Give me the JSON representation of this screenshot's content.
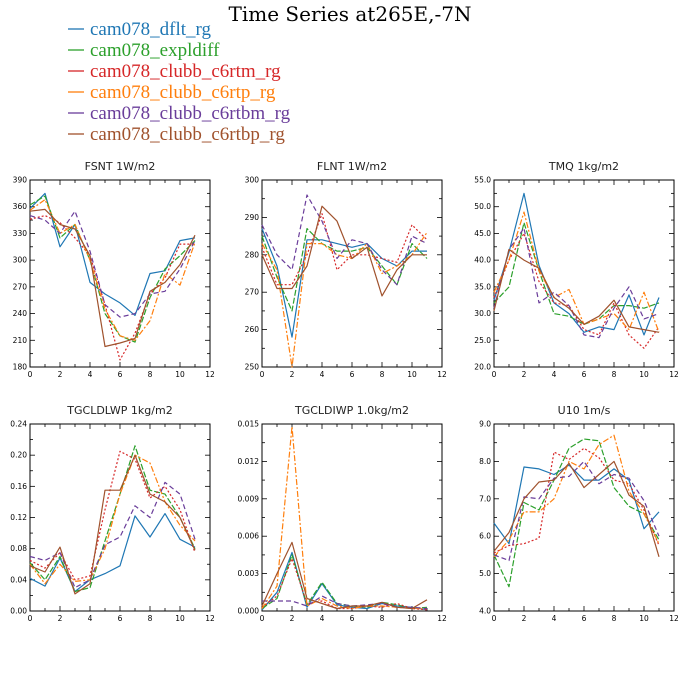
{
  "figure": {
    "title": "Time Series at265E,-7N",
    "legend": [
      {
        "name": "cam078_dflt_rg",
        "color": "#1f77b4"
      },
      {
        "name": "cam078_expldiff",
        "color": "#2ca02c"
      },
      {
        "name": "cam078_clubb_c6rtm_rg",
        "color": "#d62728"
      },
      {
        "name": "cam078_clubb_c6rtp_rg",
        "color": "#ff7f0e"
      },
      {
        "name": "cam078_clubb_c6rtbm_rg",
        "color": "#6a3d9a"
      },
      {
        "name": "cam078_clubb_c6rtbp_rg",
        "color": "#a0522d"
      }
    ]
  },
  "chart_data": [
    {
      "type": "line",
      "title": "FSNT   1W/m2",
      "x": [
        0,
        1,
        2,
        3,
        4,
        5,
        6,
        7,
        8,
        9,
        10,
        11
      ],
      "xlim": [
        0,
        12
      ],
      "xticks": [
        "0",
        "2",
        "4",
        "6",
        "8",
        "10",
        "12"
      ],
      "ylim": [
        180,
        390
      ],
      "yticks": [
        "180",
        "210",
        "240",
        "270",
        "300",
        "330",
        "360",
        "390"
      ],
      "series": [
        {
          "name": "cam078_dflt_rg",
          "color": "#1f77b4",
          "dash": "",
          "values": [
            358,
            375,
            315,
            340,
            275,
            262,
            252,
            238,
            285,
            288,
            322,
            325
          ]
        },
        {
          "name": "cam078_expldiff",
          "color": "#2ca02c",
          "dash": "6,2",
          "values": [
            362,
            372,
            325,
            340,
            300,
            240,
            215,
            208,
            258,
            290,
            305,
            322
          ]
        },
        {
          "name": "cam078_clubb_c6rtm_rg",
          "color": "#d62728",
          "dash": "2,2",
          "values": [
            346,
            350,
            342,
            325,
            305,
            250,
            188,
            218,
            262,
            280,
            318,
            318
          ]
        },
        {
          "name": "cam078_clubb_c6rtp_rg",
          "color": "#ff7f0e",
          "dash": "6,2,2,2",
          "values": [
            356,
            368,
            330,
            340,
            300,
            245,
            215,
            210,
            232,
            285,
            272,
            320
          ]
        },
        {
          "name": "cam078_clubb_c6rtbm_rg",
          "color": "#6a3d9a",
          "dash": "5,3",
          "values": [
            350,
            345,
            330,
            355,
            310,
            250,
            236,
            240,
            262,
            265,
            290,
            322
          ]
        },
        {
          "name": "cam078_clubb_c6rtbp_rg",
          "color": "#a0522d",
          "dash": "",
          "values": [
            355,
            357,
            340,
            335,
            305,
            203,
            207,
            212,
            265,
            275,
            295,
            328
          ]
        }
      ]
    },
    {
      "type": "line",
      "title": "FLNT   1W/m2",
      "x": [
        0,
        1,
        2,
        3,
        4,
        5,
        6,
        7,
        8,
        9,
        10,
        11
      ],
      "xlim": [
        0,
        12
      ],
      "xticks": [
        "0",
        "2",
        "4",
        "6",
        "8",
        "10",
        "12"
      ],
      "ylim": [
        250,
        300
      ],
      "yticks": [
        "250",
        "260",
        "270",
        "280",
        "290",
        "300"
      ],
      "series": [
        {
          "name": "cam078_dflt_rg",
          "color": "#1f77b4",
          "dash": "",
          "values": [
            287,
            277,
            258,
            284,
            284,
            283,
            282,
            283,
            279,
            277,
            281,
            281
          ]
        },
        {
          "name": "cam078_expldiff",
          "color": "#2ca02c",
          "dash": "6,2",
          "values": [
            285,
            274,
            265,
            287,
            283,
            281,
            281,
            282,
            277,
            272,
            283,
            279
          ]
        },
        {
          "name": "cam078_clubb_c6rtm_rg",
          "color": "#d62728",
          "dash": "2,2",
          "values": [
            282,
            272,
            272,
            280,
            291,
            276,
            280,
            280,
            279,
            278,
            288,
            284
          ]
        },
        {
          "name": "cam078_clubb_c6rtp_rg",
          "color": "#ff7f0e",
          "dash": "6,2,2,2",
          "values": [
            283,
            276,
            250,
            283,
            283,
            280,
            279,
            283,
            275,
            277,
            280,
            286
          ]
        },
        {
          "name": "cam078_clubb_c6rtbm_rg",
          "color": "#6a3d9a",
          "dash": "5,3",
          "values": [
            288,
            280,
            276,
            296,
            289,
            279,
            284,
            283,
            276,
            272,
            285,
            283
          ]
        },
        {
          "name": "cam078_clubb_c6rtbp_rg",
          "color": "#a0522d",
          "dash": "",
          "values": [
            280,
            271,
            271,
            277,
            293,
            289,
            279,
            282,
            269,
            276,
            280,
            280
          ]
        }
      ]
    },
    {
      "type": "line",
      "title": "TMQ   1kg/m2",
      "x": [
        0,
        1,
        2,
        3,
        4,
        5,
        6,
        7,
        8,
        9,
        10,
        11
      ],
      "xlim": [
        0,
        12
      ],
      "xticks": [
        "0",
        "2",
        "4",
        "6",
        "8",
        "10",
        "12"
      ],
      "ylim": [
        20.0,
        55.0
      ],
      "yticks": [
        "20.0",
        "25.0",
        "30.0",
        "35.0",
        "40.0",
        "45.0",
        "50.0",
        "55.0"
      ],
      "series": [
        {
          "name": "cam078_dflt_rg",
          "color": "#1f77b4",
          "dash": "",
          "values": [
            32.5,
            41.5,
            52.5,
            39,
            32,
            30,
            26.5,
            27.5,
            27,
            33.5,
            26,
            33
          ]
        },
        {
          "name": "cam078_expldiff",
          "color": "#2ca02c",
          "dash": "6,2",
          "values": [
            32,
            35,
            47,
            38,
            30,
            29.5,
            28,
            29,
            31.5,
            31.5,
            31,
            32
          ]
        },
        {
          "name": "cam078_clubb_c6rtm_rg",
          "color": "#d62728",
          "dash": "2,2",
          "values": [
            33,
            40,
            45,
            36,
            32,
            31.5,
            27,
            26,
            32,
            26,
            23.5,
            27.5
          ]
        },
        {
          "name": "cam078_clubb_c6rtp_rg",
          "color": "#ff7f0e",
          "dash": "6,2,2,2",
          "values": [
            34,
            40,
            49,
            38,
            33,
            34.5,
            28,
            29,
            30,
            27,
            34,
            26.5
          ]
        },
        {
          "name": "cam078_clubb_c6rtbm_rg",
          "color": "#6a3d9a",
          "dash": "5,3",
          "values": [
            31,
            42,
            46,
            32,
            34,
            31.5,
            26,
            25.5,
            31,
            35,
            29,
            30
          ]
        },
        {
          "name": "cam078_clubb_c6rtbp_rg",
          "color": "#a0522d",
          "dash": "",
          "values": [
            30.5,
            42,
            40,
            38.5,
            33,
            31,
            28,
            29.5,
            32.5,
            27.5,
            27,
            26.5
          ]
        }
      ]
    },
    {
      "type": "line",
      "title": "TGCLDLWP   1kg/m2",
      "x": [
        0,
        1,
        2,
        3,
        4,
        5,
        6,
        7,
        8,
        9,
        10,
        11
      ],
      "xlim": [
        0,
        12
      ],
      "xticks": [
        "0",
        "2",
        "4",
        "6",
        "8",
        "10",
        "12"
      ],
      "ylim": [
        0.0,
        0.24
      ],
      "yticks": [
        "0.00",
        "0.04",
        "0.08",
        "0.12",
        "0.16",
        "0.20",
        "0.24"
      ],
      "series": [
        {
          "name": "cam078_dflt_rg",
          "color": "#1f77b4",
          "dash": "",
          "values": [
            0.042,
            0.032,
            0.068,
            0.025,
            0.04,
            0.048,
            0.058,
            0.122,
            0.095,
            0.125,
            0.092,
            0.082
          ]
        },
        {
          "name": "cam078_expldiff",
          "color": "#2ca02c",
          "dash": "6,2",
          "values": [
            0.062,
            0.04,
            0.07,
            0.025,
            0.03,
            0.09,
            0.15,
            0.212,
            0.155,
            0.15,
            0.12,
            0.08
          ]
        },
        {
          "name": "cam078_clubb_c6rtm_rg",
          "color": "#d62728",
          "dash": "2,2",
          "values": [
            0.065,
            0.055,
            0.075,
            0.04,
            0.045,
            0.13,
            0.205,
            0.195,
            0.145,
            0.16,
            0.13,
            0.075
          ]
        },
        {
          "name": "cam078_clubb_c6rtp_rg",
          "color": "#ff7f0e",
          "dash": "6,2,2,2",
          "values": [
            0.06,
            0.035,
            0.06,
            0.038,
            0.04,
            0.08,
            0.15,
            0.2,
            0.19,
            0.14,
            0.11,
            0.09
          ]
        },
        {
          "name": "cam078_clubb_c6rtbm_rg",
          "color": "#6a3d9a",
          "dash": "5,3",
          "values": [
            0.07,
            0.065,
            0.075,
            0.03,
            0.04,
            0.085,
            0.095,
            0.135,
            0.12,
            0.165,
            0.15,
            0.092
          ]
        },
        {
          "name": "cam078_clubb_c6rtbp_rg",
          "color": "#a0522d",
          "dash": "",
          "values": [
            0.058,
            0.05,
            0.082,
            0.022,
            0.035,
            0.155,
            0.155,
            0.2,
            0.15,
            0.14,
            0.12,
            0.078
          ]
        }
      ]
    },
    {
      "type": "line",
      "title": "TGCLDIWP   1.0kg/m2",
      "x": [
        0,
        1,
        2,
        3,
        4,
        5,
        6,
        7,
        8,
        9,
        10,
        11
      ],
      "xlim": [
        0,
        12
      ],
      "xticks": [
        "0",
        "2",
        "4",
        "6",
        "8",
        "10",
        "12"
      ],
      "ylim": [
        0.0,
        0.015
      ],
      "yticks": [
        "0.000",
        "0.003",
        "0.006",
        "0.009",
        "0.012",
        "0.015"
      ],
      "series": [
        {
          "name": "cam078_dflt_rg",
          "color": "#1f77b4",
          "dash": "",
          "values": [
            0.0001,
            0.0015,
            0.0047,
            0.0003,
            0.0022,
            0.0005,
            0.0003,
            0.0002,
            0.0006,
            0.0004,
            0.0003,
            0.0001
          ]
        },
        {
          "name": "cam078_expldiff",
          "color": "#2ca02c",
          "dash": "6,2",
          "values": [
            0.0002,
            0.001,
            0.0045,
            0.0005,
            0.0023,
            0.0006,
            0.0004,
            0.0003,
            0.0007,
            0.0005,
            0.0002,
            0.0003
          ]
        },
        {
          "name": "cam078_clubb_c6rtm_rg",
          "color": "#d62728",
          "dash": "2,2",
          "values": [
            0.0003,
            0.0012,
            0.0042,
            0.0006,
            0.0008,
            0.0002,
            0.0002,
            0.0004,
            0.0003,
            0.0006,
            0.0002,
            0.0001
          ]
        },
        {
          "name": "cam078_clubb_c6rtp_rg",
          "color": "#ff7f0e",
          "dash": "6,2,2,2",
          "values": [
            0.0002,
            0.002,
            0.0148,
            0.0004,
            0.001,
            0.0004,
            0.0002,
            0.0004,
            0.0004,
            0.0003,
            0.0002,
            0.0002
          ]
        },
        {
          "name": "cam078_clubb_c6rtbm_rg",
          "color": "#6a3d9a",
          "dash": "5,3",
          "values": [
            0.0008,
            0.0008,
            0.0008,
            0.0004,
            0.0012,
            0.0006,
            0.0004,
            0.0005,
            0.0006,
            0.0003,
            0.0003,
            0.0002
          ]
        },
        {
          "name": "cam078_clubb_c6rtbp_rg",
          "color": "#a0522d",
          "dash": "",
          "values": [
            0.0004,
            0.003,
            0.0055,
            0.001,
            0.0006,
            0.0002,
            0.0004,
            0.0004,
            0.0007,
            0.0003,
            0.0002,
            0.0009
          ]
        }
      ]
    },
    {
      "type": "line",
      "title": "U10   1m/s",
      "x": [
        0,
        1,
        2,
        3,
        4,
        5,
        6,
        7,
        8,
        9,
        10,
        11
      ],
      "xlim": [
        0,
        12
      ],
      "xticks": [
        "0",
        "2",
        "4",
        "6",
        "8",
        "10",
        "12"
      ],
      "ylim": [
        4.0,
        9.0
      ],
      "yticks": [
        "4.0",
        "5.0",
        "6.0",
        "7.0",
        "8.0",
        "9.0"
      ],
      "series": [
        {
          "name": "cam078_dflt_rg",
          "color": "#1f77b4",
          "dash": "",
          "values": [
            6.35,
            5.8,
            7.85,
            7.8,
            7.65,
            7.9,
            7.5,
            7.5,
            7.8,
            7.5,
            6.2,
            6.65
          ]
        },
        {
          "name": "cam078_expldiff",
          "color": "#2ca02c",
          "dash": "6,2",
          "values": [
            5.5,
            4.65,
            6.9,
            6.7,
            7.5,
            8.35,
            8.6,
            8.55,
            7.3,
            6.8,
            6.6,
            5.9
          ]
        },
        {
          "name": "cam078_clubb_c6rtm_rg",
          "color": "#d62728",
          "dash": "2,2",
          "values": [
            5.55,
            5.75,
            5.8,
            5.95,
            8.25,
            8.05,
            8.35,
            8.1,
            7.5,
            7.4,
            6.7,
            5.75
          ]
        },
        {
          "name": "cam078_clubb_c6rtp_rg",
          "color": "#ff7f0e",
          "dash": "6,2,2,2",
          "values": [
            5.45,
            5.9,
            6.65,
            6.65,
            7.0,
            8.0,
            7.8,
            8.45,
            8.7,
            7.2,
            6.6,
            5.8
          ]
        },
        {
          "name": "cam078_clubb_c6rtbm_rg",
          "color": "#6a3d9a",
          "dash": "5,3",
          "values": [
            5.5,
            5.35,
            7.05,
            7.0,
            7.55,
            7.6,
            8.0,
            7.4,
            7.65,
            7.55,
            6.95,
            6.0
          ]
        },
        {
          "name": "cam078_clubb_c6rtbp_rg",
          "color": "#a0522d",
          "dash": "",
          "values": [
            5.6,
            6.1,
            7.0,
            7.45,
            7.5,
            7.95,
            7.3,
            7.65,
            8.0,
            7.1,
            6.8,
            5.45
          ]
        }
      ]
    }
  ]
}
